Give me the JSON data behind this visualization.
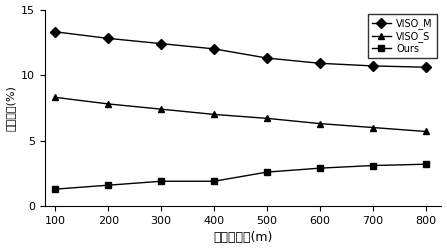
{
  "x": [
    100,
    200,
    300,
    400,
    500,
    600,
    700,
    800
  ],
  "viso_m": [
    13.3,
    12.8,
    12.4,
    12.0,
    11.3,
    10.9,
    10.7,
    10.6
  ],
  "viso_s": [
    8.3,
    7.8,
    7.4,
    7.0,
    6.7,
    6.3,
    6.0,
    5.7
  ],
  "ours": [
    1.3,
    1.6,
    1.9,
    1.9,
    2.6,
    2.9,
    3.1,
    3.2
  ],
  "xlabel": "子序列长度(m)",
  "ylabel": "位移误差(%)",
  "ylim": [
    0,
    15
  ],
  "xlim": [
    80,
    830
  ],
  "yticks": [
    0,
    5,
    10,
    15
  ],
  "xticks": [
    100,
    200,
    300,
    400,
    500,
    600,
    700,
    800
  ],
  "legend_labels": [
    "VISO_M",
    "VISO_S",
    "Ours"
  ],
  "line_color": "#000000",
  "background_color": "#ffffff",
  "marker_viso_m": "D",
  "marker_viso_s": "s",
  "marker_ours": "P"
}
